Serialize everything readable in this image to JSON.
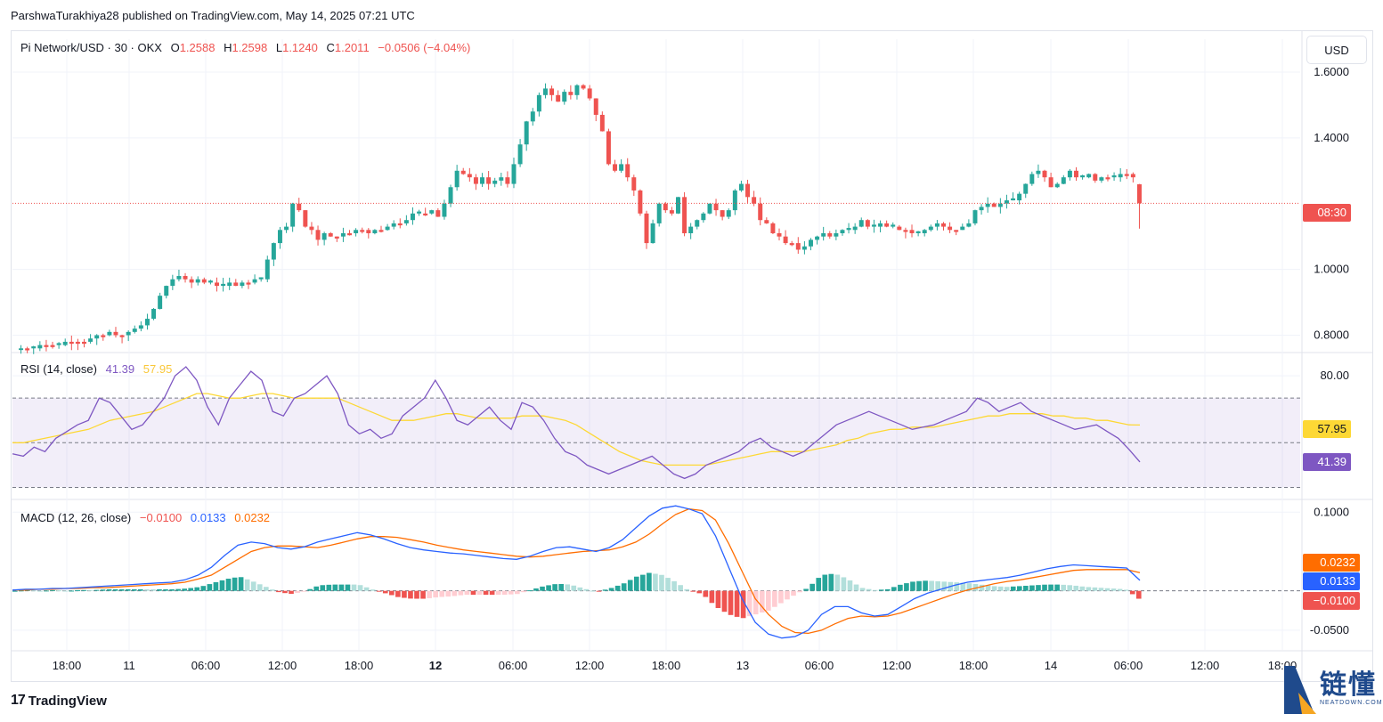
{
  "publisher": "ParshwaTurakhiya28 published on TradingView.com, May 14, 2025 07:21 UTC",
  "currency_button": "USD",
  "branding": {
    "logo_text": "TradingView",
    "logo_mark": "17",
    "watermark": "链懂",
    "watermark_sub": "NEATDOWN.COM"
  },
  "colors": {
    "up": "#26a69a",
    "down": "#ef5350",
    "rsi": "#7e57c2",
    "rsi_ma": "#fdd835",
    "macd": "#2962ff",
    "signal": "#ff6d00",
    "hist_up_strong": "#26a69a",
    "hist_up_weak": "#b2dfdb",
    "hist_down_strong": "#ef5350",
    "hist_down_weak": "#ffcdd2"
  },
  "legend": {
    "symbol": "Pi Network/USD · 30 · OKX",
    "o_label": "O",
    "o": "1.2588",
    "h_label": "H",
    "h": "1.2598",
    "l_label": "L",
    "l": "1.1240",
    "c_label": "C",
    "c": "1.2011",
    "change": "−0.0506 (−4.04%)",
    "rsi_title": "RSI (14, close)",
    "rsi_value": "41.39",
    "rsi_ma_value": "57.95",
    "macd_title": "MACD (12, 26, close)",
    "macd_hist": "−0.0100",
    "macd_line": "0.0133",
    "macd_signal": "0.0232"
  },
  "price_labels": {
    "countdown": "08:30",
    "rsi_ma": "57.95",
    "rsi": "41.39",
    "signal": "0.0232",
    "macd": "0.0133",
    "hist": "−0.0100"
  },
  "chart_data": [
    {
      "type": "candlestick",
      "title": "Pi Network/USD · 30 · OKX",
      "y_ticks": [
        "1.6000",
        "1.4000",
        "1.0000",
        "0.8000"
      ],
      "ylim": [
        0.75,
        1.7
      ],
      "x_ticks": [
        "18:00",
        "11",
        "06:00",
        "12:00",
        "18:00",
        "12",
        "06:00",
        "12:00",
        "18:00",
        "13",
        "06:00",
        "12:00",
        "18:00",
        "14",
        "06:00",
        "12:00",
        "18:00"
      ],
      "close_path": [
        0.76,
        0.76,
        0.76,
        0.77,
        0.77,
        0.77,
        0.77,
        0.78,
        0.78,
        0.78,
        0.78,
        0.79,
        0.8,
        0.8,
        0.81,
        0.8,
        0.8,
        0.81,
        0.82,
        0.83,
        0.85,
        0.88,
        0.92,
        0.95,
        0.97,
        0.98,
        0.97,
        0.96,
        0.97,
        0.96,
        0.96,
        0.95,
        0.95,
        0.96,
        0.95,
        0.96,
        0.96,
        0.97,
        0.97,
        1.03,
        1.08,
        1.12,
        1.13,
        1.2,
        1.18,
        1.13,
        1.12,
        1.09,
        1.11,
        1.1,
        1.1,
        1.11,
        1.11,
        1.12,
        1.12,
        1.11,
        1.12,
        1.12,
        1.13,
        1.14,
        1.14,
        1.15,
        1.17,
        1.17,
        1.17,
        1.18,
        1.16,
        1.2,
        1.25,
        1.3,
        1.29,
        1.28,
        1.26,
        1.28,
        1.26,
        1.27,
        1.28,
        1.26,
        1.32,
        1.38,
        1.45,
        1.48,
        1.53,
        1.55,
        1.53,
        1.51,
        1.54,
        1.53,
        1.56,
        1.55,
        1.52,
        1.47,
        1.42,
        1.32,
        1.3,
        1.32,
        1.28,
        1.24,
        1.17,
        1.08,
        1.14,
        1.2,
        1.18,
        1.17,
        1.22,
        1.11,
        1.13,
        1.15,
        1.17,
        1.2,
        1.18,
        1.16,
        1.18,
        1.24,
        1.26,
        1.22,
        1.2,
        1.15,
        1.14,
        1.11,
        1.1,
        1.08,
        1.08,
        1.06,
        1.07,
        1.09,
        1.1,
        1.11,
        1.1,
        1.11,
        1.12,
        1.12,
        1.13,
        1.15,
        1.13,
        1.13,
        1.14,
        1.13,
        1.13,
        1.12,
        1.12,
        1.11,
        1.11,
        1.12,
        1.13,
        1.14,
        1.13,
        1.12,
        1.12,
        1.13,
        1.14,
        1.18,
        1.19,
        1.2,
        1.19,
        1.2,
        1.21,
        1.21,
        1.23,
        1.26,
        1.29,
        1.3,
        1.28,
        1.25,
        1.26,
        1.28,
        1.3,
        1.28,
        1.28,
        1.29,
        1.27,
        1.28,
        1.28,
        1.28,
        1.29,
        1.29,
        1.28,
        1.2
      ],
      "last": {
        "open": 1.2588,
        "high": 1.2598,
        "low": 1.124,
        "close": 1.2011
      }
    },
    {
      "type": "line",
      "title": "RSI (14, close)",
      "y_ticks": [
        "80.00"
      ],
      "bands": [
        70,
        50,
        30
      ],
      "ylim": [
        25,
        90
      ],
      "series": [
        {
          "name": "RSI",
          "values": [
            45,
            44,
            48,
            46,
            52,
            55,
            58,
            60,
            70,
            68,
            62,
            56,
            58,
            64,
            70,
            80,
            84,
            78,
            66,
            58,
            70,
            76,
            82,
            78,
            64,
            62,
            70,
            72,
            76,
            80,
            72,
            58,
            54,
            56,
            52,
            54,
            62,
            66,
            70,
            78,
            70,
            60,
            58,
            62,
            66,
            60,
            56,
            68,
            66,
            60,
            52,
            46,
            44,
            40,
            38,
            36,
            38,
            40,
            42,
            44,
            40,
            36,
            34,
            36,
            40,
            42,
            44,
            46,
            50,
            52,
            48,
            46,
            44,
            46,
            50,
            54,
            58,
            60,
            62,
            64,
            62,
            60,
            58,
            56,
            57,
            58,
            60,
            62,
            64,
            70,
            68,
            64,
            66,
            68,
            64,
            62,
            60,
            58,
            56,
            57,
            58,
            55,
            52,
            47,
            41.39
          ]
        },
        {
          "name": "RSI MA",
          "values": [
            50,
            50,
            51,
            52,
            53,
            54,
            55,
            56,
            58,
            60,
            61,
            62,
            63,
            64,
            66,
            68,
            70,
            72,
            72,
            71,
            70,
            70,
            71,
            72,
            72,
            71,
            70,
            70,
            70,
            70,
            70,
            68,
            66,
            64,
            62,
            60,
            60,
            60,
            61,
            62,
            63,
            63,
            62,
            61,
            61,
            61,
            61,
            62,
            62,
            62,
            61,
            60,
            58,
            55,
            52,
            49,
            46,
            44,
            42,
            41,
            40,
            40,
            40,
            40,
            40,
            41,
            42,
            43,
            44,
            45,
            46,
            46,
            46,
            46,
            47,
            48,
            49,
            51,
            52,
            54,
            55,
            56,
            56,
            57,
            57,
            57,
            58,
            59,
            60,
            61,
            62,
            62,
            63,
            63,
            63,
            63,
            62,
            62,
            61,
            61,
            60,
            60,
            59,
            58,
            57.95
          ]
        }
      ]
    },
    {
      "type": "line",
      "title": "MACD (12, 26, close)",
      "y_ticks": [
        "0.1000",
        "-0.0500"
      ],
      "ylim": [
        -0.075,
        0.115
      ],
      "series": [
        {
          "name": "MACD",
          "values": [
            0.001,
            0.002,
            0.002,
            0.003,
            0.003,
            0.004,
            0.005,
            0.006,
            0.007,
            0.008,
            0.009,
            0.01,
            0.011,
            0.014,
            0.02,
            0.03,
            0.045,
            0.058,
            0.062,
            0.06,
            0.055,
            0.053,
            0.056,
            0.062,
            0.066,
            0.07,
            0.074,
            0.071,
            0.066,
            0.06,
            0.055,
            0.052,
            0.05,
            0.048,
            0.047,
            0.045,
            0.043,
            0.041,
            0.04,
            0.044,
            0.05,
            0.055,
            0.056,
            0.053,
            0.05,
            0.055,
            0.065,
            0.08,
            0.095,
            0.105,
            0.108,
            0.104,
            0.098,
            0.07,
            0.03,
            -0.01,
            -0.04,
            -0.055,
            -0.06,
            -0.058,
            -0.05,
            -0.03,
            -0.02,
            -0.02,
            -0.028,
            -0.032,
            -0.03,
            -0.02,
            -0.01,
            -0.003,
            0.002,
            0.007,
            0.011,
            0.013,
            0.015,
            0.017,
            0.02,
            0.024,
            0.028,
            0.031,
            0.033,
            0.032,
            0.031,
            0.03,
            0.029,
            0.0133
          ]
        },
        {
          "name": "Signal",
          "values": [
            0.001,
            0.001,
            0.002,
            0.002,
            0.003,
            0.003,
            0.004,
            0.004,
            0.005,
            0.006,
            0.007,
            0.008,
            0.009,
            0.011,
            0.015,
            0.02,
            0.03,
            0.04,
            0.05,
            0.055,
            0.057,
            0.057,
            0.056,
            0.055,
            0.058,
            0.062,
            0.066,
            0.069,
            0.069,
            0.068,
            0.065,
            0.062,
            0.058,
            0.055,
            0.052,
            0.05,
            0.048,
            0.046,
            0.044,
            0.043,
            0.044,
            0.046,
            0.048,
            0.05,
            0.051,
            0.052,
            0.056,
            0.062,
            0.072,
            0.085,
            0.097,
            0.104,
            0.102,
            0.09,
            0.06,
            0.025,
            -0.01,
            -0.03,
            -0.045,
            -0.053,
            -0.054,
            -0.05,
            -0.042,
            -0.035,
            -0.032,
            -0.033,
            -0.032,
            -0.028,
            -0.022,
            -0.016,
            -0.01,
            -0.004,
            0.001,
            0.005,
            0.009,
            0.012,
            0.014,
            0.017,
            0.02,
            0.023,
            0.026,
            0.027,
            0.027,
            0.027,
            0.027,
            0.0232
          ]
        }
      ],
      "histogram_last": -0.01
    }
  ]
}
